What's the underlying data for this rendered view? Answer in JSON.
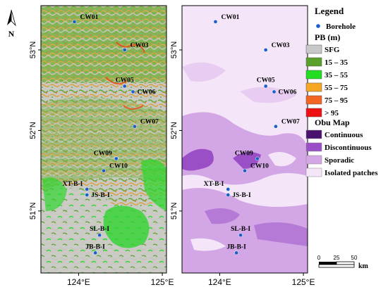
{
  "north_arrow": {
    "label": "N"
  },
  "axes": {
    "lat_ticks": [
      {
        "value": 53,
        "label": "53°N"
      },
      {
        "value": 52,
        "label": "52°N"
      },
      {
        "value": 51,
        "label": "51°N"
      }
    ],
    "lon_ticks": [
      {
        "value": 124,
        "label": "124°E"
      },
      {
        "value": 125,
        "label": "125°E"
      }
    ],
    "lon_range": [
      123.55,
      125.05
    ],
    "lat_range": [
      50.23,
      53.55
    ]
  },
  "boreholes": [
    {
      "name": "CW01",
      "lon": 123.95,
      "lat": 53.35,
      "label_side": "right-up"
    },
    {
      "name": "CW03",
      "lon": 124.55,
      "lat": 53.0,
      "label_side": "right-up"
    },
    {
      "name": "CW05",
      "lon": 124.55,
      "lat": 52.55,
      "label_side": "above"
    },
    {
      "name": "CW06",
      "lon": 124.65,
      "lat": 52.48,
      "label_side": "right"
    },
    {
      "name": "CW07",
      "lon": 124.67,
      "lat": 52.05,
      "label_side": "right-up"
    },
    {
      "name": "CW09",
      "lon": 124.45,
      "lat": 51.65,
      "label_side": "left-up"
    },
    {
      "name": "CW10",
      "lon": 124.3,
      "lat": 51.5,
      "label_side": "right-up"
    },
    {
      "name": "XT-B-I",
      "lon": 124.1,
      "lat": 51.27,
      "label_side": "left-up"
    },
    {
      "name": "JS-B-I",
      "lon": 124.1,
      "lat": 51.2,
      "label_side": "right"
    },
    {
      "name": "SL-B-I",
      "lon": 124.25,
      "lat": 50.7,
      "label_side": "above"
    },
    {
      "name": "JB-B-I",
      "lon": 124.2,
      "lat": 50.48,
      "label_side": "above"
    }
  ],
  "legend": {
    "title": "Legend",
    "borehole_label": "Borehole",
    "pb_title": "PB (m)",
    "pb_classes": [
      {
        "label": "SFG",
        "color": "#c8c8c8"
      },
      {
        "label": "15 – 35",
        "color": "#5aa02c"
      },
      {
        "label": "35 – 55",
        "color": "#22dd22"
      },
      {
        "label": "55 – 75",
        "color": "#f5a623"
      },
      {
        "label": "75 – 95",
        "color": "#f26522"
      },
      {
        "label": "> 95",
        "color": "#ee1111"
      }
    ],
    "obu_title": "Obu Map",
    "obu_classes": [
      {
        "label": "Continuous",
        "color": "#4a106e"
      },
      {
        "label": "Discontinuous",
        "color": "#9a4fc7"
      },
      {
        "label": "Sporadic",
        "color": "#d3a6e6"
      },
      {
        "label": "Isolated patches",
        "color": "#f4e6f8"
      }
    ]
  },
  "scale_bar": {
    "ticks": [
      "0",
      "25",
      "50"
    ],
    "unit": "km"
  },
  "colors": {
    "borehole": "#1a5fc9",
    "frame": "#000000"
  }
}
